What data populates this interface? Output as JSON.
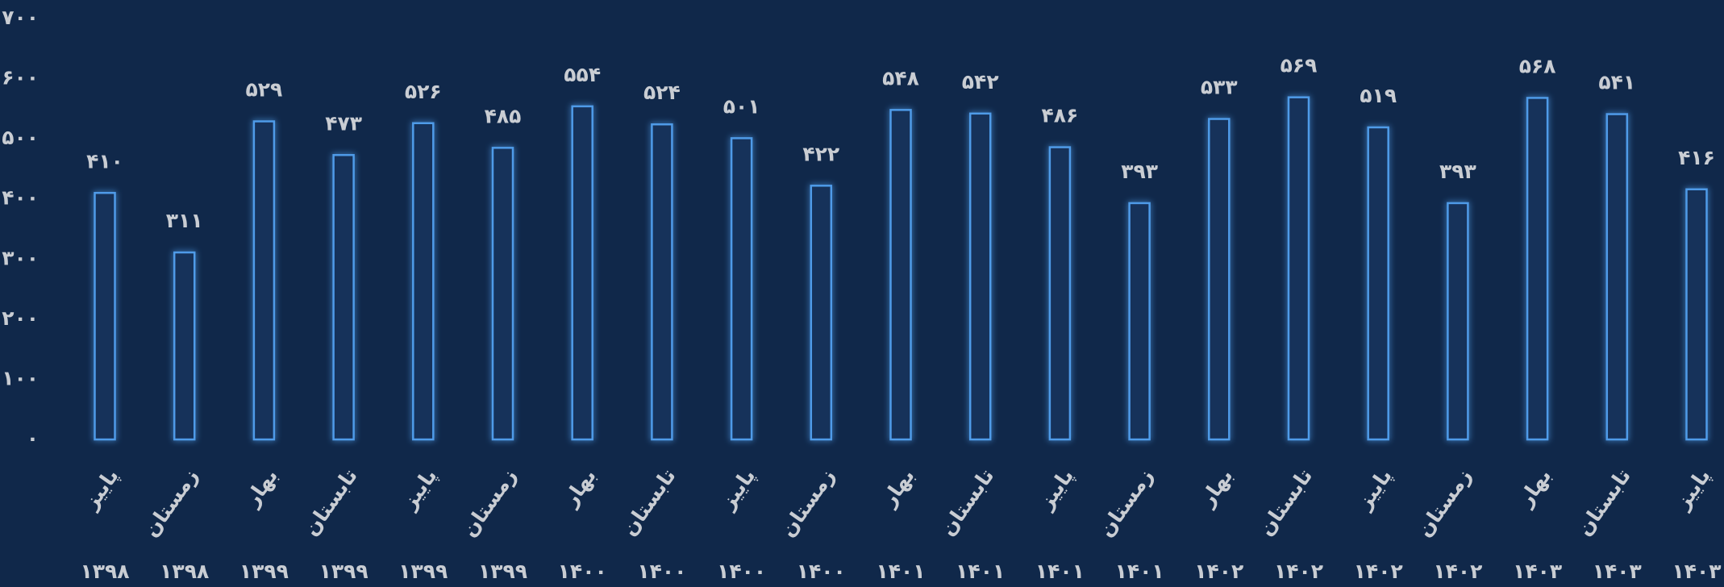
{
  "chart_data": {
    "type": "bar",
    "categories": [
      "پاییز",
      "زمستان",
      "بهار",
      "تابستان",
      "پاییز",
      "زمستان",
      "بهار",
      "تابستان",
      "پاییز",
      "زمستان",
      "بهار",
      "تابستان",
      "پاییز",
      "زمستان",
      "بهار",
      "تابستان",
      "پاییز",
      "زمستان",
      "بهار",
      "تابستان",
      "پاییز"
    ],
    "years": [
      "۱۳۹۸",
      "۱۳۹۸",
      "۱۳۹۹",
      "۱۳۹۹",
      "۱۳۹۹",
      "۱۳۹۹",
      "۱۴۰۰",
      "۱۴۰۰",
      "۱۴۰۰",
      "۱۴۰۰",
      "۱۴۰۱",
      "۱۴۰۱",
      "۱۴۰۱",
      "۱۴۰۱",
      "۱۴۰۲",
      "۱۴۰۲",
      "۱۴۰۲",
      "۱۴۰۲",
      "۱۴۰۳",
      "۱۴۰۳",
      "۱۴۰۳"
    ],
    "values": [
      410,
      311,
      529,
      473,
      526,
      485,
      554,
      524,
      501,
      422,
      548,
      542,
      486,
      393,
      533,
      569,
      519,
      393,
      568,
      541,
      416
    ],
    "value_labels": [
      "۴۱۰",
      "۳۱۱",
      "۵۲۹",
      "۴۷۳",
      "۵۲۶",
      "۴۸۵",
      "۵۵۴",
      "۵۲۴",
      "۵۰۱",
      "۴۲۲",
      "۵۴۸",
      "۵۴۲",
      "۴۸۶",
      "۳۹۳",
      "۵۳۳",
      "۵۶۹",
      "۵۱۹",
      "۳۹۳",
      "۵۶۸",
      "۵۴۱",
      "۴۱۶"
    ],
    "color": "#4f9be8",
    "ylim": [
      0,
      700
    ],
    "yticks": [
      {
        "value": 0,
        "label": "۰"
      },
      {
        "value": 100,
        "label": "۱۰۰"
      },
      {
        "value": 200,
        "label": "۲۰۰"
      },
      {
        "value": 300,
        "label": "۳۰۰"
      },
      {
        "value": 400,
        "label": "۴۰۰"
      },
      {
        "value": 500,
        "label": "۵۰۰"
      },
      {
        "value": 600,
        "label": "۶۰۰"
      },
      {
        "value": 700,
        "label": "۷۰۰"
      }
    ],
    "grid": false
  }
}
